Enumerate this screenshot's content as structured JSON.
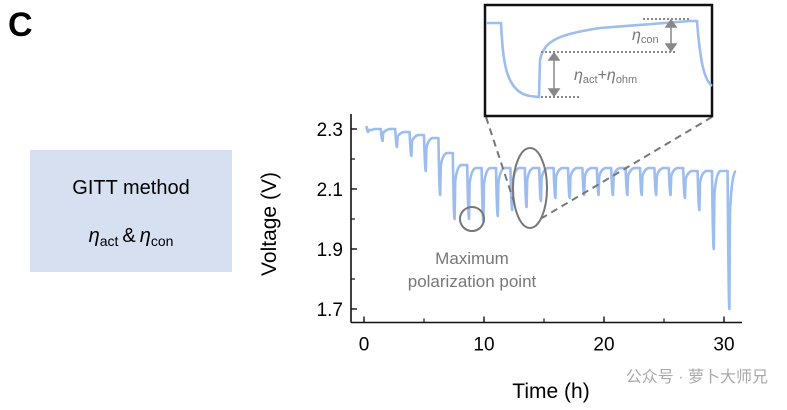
{
  "panel_label": "C",
  "method_box": {
    "line1": "GITT method",
    "eta_symbol": "η",
    "sub_act": "act",
    "amp": "&",
    "sub_con": "con",
    "fill": "#d6e0f0"
  },
  "annotation": {
    "line1": "Maximum",
    "line2": "polarization point"
  },
  "inset": {
    "label_con": {
      "eta": "η",
      "sub": "con"
    },
    "label_act_ohm": {
      "eta": "η",
      "sub1": "act",
      "plus": "+",
      "sub2": "ohm"
    }
  },
  "watermark": "公众号 · 萝卜大师兄",
  "chart_data": {
    "type": "line",
    "xlabel": "Time (h)",
    "ylabel": "Voltage (V)",
    "xlim": [
      -1,
      31.5
    ],
    "ylim": [
      1.655,
      2.35
    ],
    "xticks": [
      0,
      10,
      20,
      30
    ],
    "xtick_labels": [
      "0",
      "10",
      "20",
      "30"
    ],
    "yticks": [
      2.3,
      2.1,
      1.9,
      1.7
    ],
    "ytick_labels": [
      "2.3",
      "2.1",
      "1.9",
      "1.7"
    ],
    "grid": false,
    "line_color": "#9dbdee",
    "pulses_columns": [
      "time_h",
      "rest_voltage_V",
      "min_voltage_V"
    ],
    "pulses": [
      [
        0.2,
        2.31,
        2.29
      ],
      [
        1.4,
        2.3,
        2.26
      ],
      [
        2.6,
        2.3,
        2.24
      ],
      [
        3.8,
        2.29,
        2.21
      ],
      [
        5.0,
        2.28,
        2.16
      ],
      [
        6.2,
        2.27,
        2.08
      ],
      [
        7.4,
        2.22,
        2.0
      ],
      [
        8.6,
        2.18,
        2.0
      ],
      [
        9.8,
        2.17,
        1.99
      ],
      [
        11.0,
        2.17,
        2.01
      ],
      [
        12.2,
        2.17,
        2.03
      ],
      [
        13.4,
        2.17,
        2.04
      ],
      [
        14.6,
        2.17,
        2.06
      ],
      [
        15.8,
        2.17,
        2.07
      ],
      [
        17.0,
        2.17,
        2.07
      ],
      [
        18.2,
        2.17,
        2.08
      ],
      [
        19.4,
        2.17,
        2.08
      ],
      [
        20.6,
        2.17,
        2.08
      ],
      [
        21.8,
        2.17,
        2.08
      ],
      [
        23.0,
        2.17,
        2.08
      ],
      [
        24.2,
        2.17,
        2.08
      ],
      [
        25.4,
        2.17,
        2.08
      ],
      [
        26.6,
        2.17,
        2.07
      ],
      [
        27.8,
        2.16,
        2.03
      ],
      [
        29.0,
        2.16,
        1.9
      ],
      [
        30.3,
        2.16,
        1.7
      ]
    ],
    "end": [
      31.0,
      2.16
    ]
  }
}
